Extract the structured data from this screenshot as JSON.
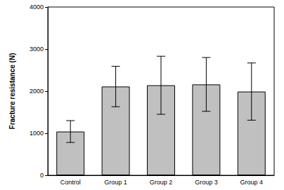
{
  "chart_data": {
    "type": "bar",
    "y_label": "Fracture resistance (N)",
    "categories": [
      "Control",
      "Group 1",
      "Group 2",
      "Group 3",
      "Group 4"
    ],
    "values": [
      1040,
      2110,
      2140,
      2160,
      1990
    ],
    "errors": [
      260,
      480,
      690,
      640,
      680
    ],
    "color": "#c0c0c0",
    "ylim": [
      0,
      4000
    ],
    "yticks": [
      0,
      1000,
      2000,
      3000,
      4000
    ],
    "grid": false
  }
}
